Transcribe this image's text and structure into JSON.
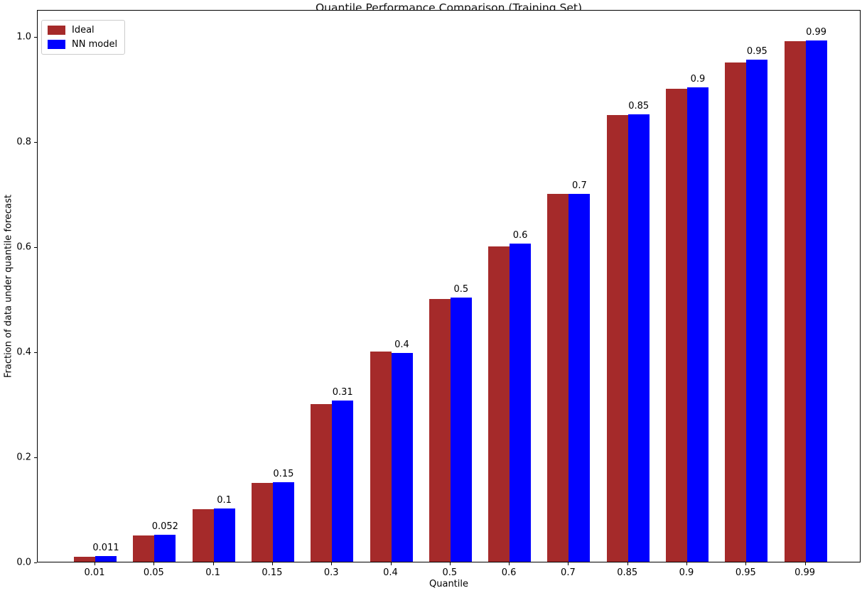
{
  "figure": {
    "title": "Quantile Performance Comparison (Training Set)"
  },
  "chart_data": {
    "type": "bar",
    "title": "Quantile Performance Comparison (Training Set)",
    "xlabel": "Quantile",
    "ylabel": "Fraction of data under quantile forecast",
    "categories": [
      "0.01",
      "0.05",
      "0.1",
      "0.15",
      "0.3",
      "0.4",
      "0.5",
      "0.6",
      "0.7",
      "0.85",
      "0.9",
      "0.95",
      "0.99"
    ],
    "series": [
      {
        "name": "Ideal",
        "color": "#a52a2a",
        "values": [
          0.01,
          0.05,
          0.1,
          0.15,
          0.3,
          0.4,
          0.5,
          0.6,
          0.7,
          0.85,
          0.9,
          0.95,
          0.99
        ]
      },
      {
        "name": "NN model",
        "color": "#0000ff",
        "values": [
          0.011,
          0.052,
          0.102,
          0.152,
          0.307,
          0.398,
          0.503,
          0.605,
          0.7,
          0.851,
          0.903,
          0.955,
          0.992
        ],
        "value_labels": [
          "0.011",
          "0.052",
          "0.1",
          "0.15",
          "0.31",
          "0.4",
          "0.5",
          "0.6",
          "0.7",
          "0.85",
          "0.9",
          "0.95",
          "0.99"
        ]
      }
    ],
    "yticks": [
      "0.0",
      "0.2",
      "0.4",
      "0.6",
      "0.8",
      "1.0"
    ],
    "ytick_values": [
      0,
      0.2,
      0.4,
      0.6,
      0.8,
      1.0
    ],
    "ylim": [
      0,
      1.0514
    ],
    "grid": false,
    "legend_position": "upper left",
    "spine_color": "#000000"
  }
}
